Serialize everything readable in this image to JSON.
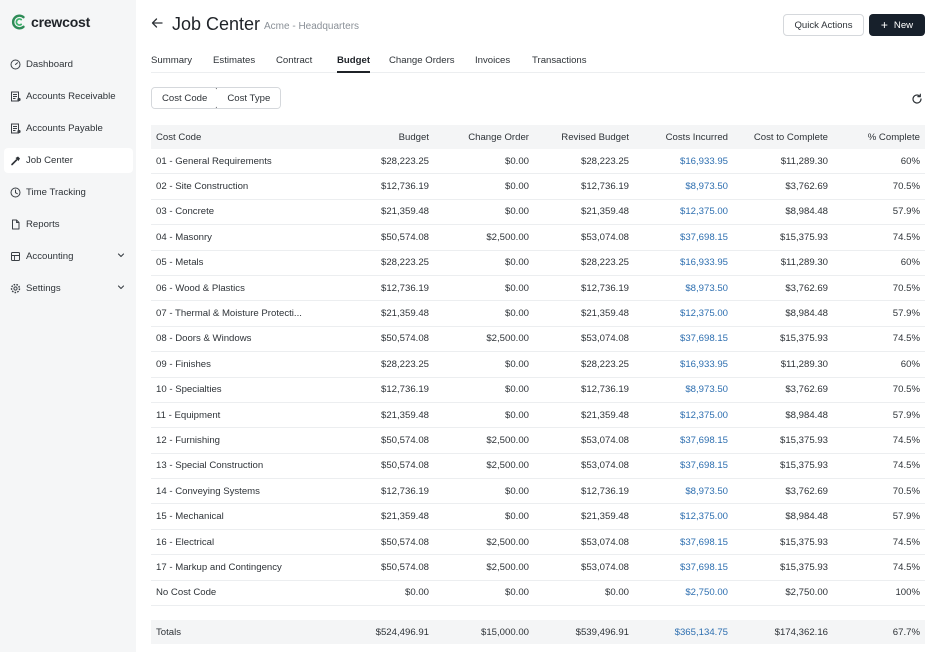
{
  "app": {
    "logo_text": "crewcost",
    "accent": "#2e8b57"
  },
  "sidebar": {
    "items": [
      {
        "label": "Dashboard",
        "icon": "gauge-icon",
        "active": false
      },
      {
        "label": "Accounts Receivable",
        "icon": "receipt-icon",
        "active": false
      },
      {
        "label": "Accounts Payable",
        "icon": "invoice-icon",
        "active": false
      },
      {
        "label": "Job Center",
        "icon": "hammer-icon",
        "active": true
      },
      {
        "label": "Time Tracking",
        "icon": "clock-icon",
        "active": false
      },
      {
        "label": "Reports",
        "icon": "document-icon",
        "active": false
      },
      {
        "label": "Accounting",
        "icon": "ledger-icon",
        "active": false,
        "expandable": true
      },
      {
        "label": "Settings",
        "icon": "gear-icon",
        "active": false,
        "expandable": true
      }
    ]
  },
  "header": {
    "title": "Job Center",
    "subtitle": "Acme - Headquarters",
    "quick_actions_label": "Quick Actions",
    "new_label": "New"
  },
  "tabs": [
    "Summary",
    "Estimates",
    "Contract",
    "Budget",
    "Change Orders",
    "Invoices",
    "Transactions"
  ],
  "active_tab": "Budget",
  "view_toggle": {
    "options": [
      "Cost Code",
      "Cost Type"
    ],
    "selected": "Cost Code"
  },
  "table": {
    "columns": [
      "Cost Code",
      "Budget",
      "Change Order",
      "Revised Budget",
      "Costs Incurred",
      "Cost to Complete",
      "% Complete"
    ],
    "rows": [
      [
        "01 - General Requirements",
        "$28,223.25",
        "$0.00",
        "$28,223.25",
        "$16,933.95",
        "$11,289.30",
        "60%"
      ],
      [
        "02 - Site Construction",
        "$12,736.19",
        "$0.00",
        "$12,736.19",
        "$8,973.50",
        "$3,762.69",
        "70.5%"
      ],
      [
        "03 - Concrete",
        "$21,359.48",
        "$0.00",
        "$21,359.48",
        "$12,375.00",
        "$8,984.48",
        "57.9%"
      ],
      [
        "04 - Masonry",
        "$50,574.08",
        "$2,500.00",
        "$53,074.08",
        "$37,698.15",
        "$15,375.93",
        "74.5%"
      ],
      [
        "05 - Metals",
        "$28,223.25",
        "$0.00",
        "$28,223.25",
        "$16,933.95",
        "$11,289.30",
        "60%"
      ],
      [
        "06 - Wood & Plastics",
        "$12,736.19",
        "$0.00",
        "$12,736.19",
        "$8,973.50",
        "$3,762.69",
        "70.5%"
      ],
      [
        "07 - Thermal & Moisture Protecti...",
        "$21,359.48",
        "$0.00",
        "$21,359.48",
        "$12,375.00",
        "$8,984.48",
        "57.9%"
      ],
      [
        "08 - Doors & Windows",
        "$50,574.08",
        "$2,500.00",
        "$53,074.08",
        "$37,698.15",
        "$15,375.93",
        "74.5%"
      ],
      [
        "09 - Finishes",
        "$28,223.25",
        "$0.00",
        "$28,223.25",
        "$16,933.95",
        "$11,289.30",
        "60%"
      ],
      [
        "10 - Specialties",
        "$12,736.19",
        "$0.00",
        "$12,736.19",
        "$8,973.50",
        "$3,762.69",
        "70.5%"
      ],
      [
        "11 - Equipment",
        "$21,359.48",
        "$0.00",
        "$21,359.48",
        "$12,375.00",
        "$8,984.48",
        "57.9%"
      ],
      [
        "12 - Furnishing",
        "$50,574.08",
        "$2,500.00",
        "$53,074.08",
        "$37,698.15",
        "$15,375.93",
        "74.5%"
      ],
      [
        "13 - Special Construction",
        "$50,574.08",
        "$2,500.00",
        "$53,074.08",
        "$37,698.15",
        "$15,375.93",
        "74.5%"
      ],
      [
        "14 - Conveying Systems",
        "$12,736.19",
        "$0.00",
        "$12,736.19",
        "$8,973.50",
        "$3,762.69",
        "70.5%"
      ],
      [
        "15 - Mechanical",
        "$21,359.48",
        "$0.00",
        "$21,359.48",
        "$12,375.00",
        "$8,984.48",
        "57.9%"
      ],
      [
        "16 - Electrical",
        "$50,574.08",
        "$2,500.00",
        "$53,074.08",
        "$37,698.15",
        "$15,375.93",
        "74.5%"
      ],
      [
        "17 - Markup and Contingency",
        "$50,574.08",
        "$2,500.00",
        "$53,074.08",
        "$37,698.15",
        "$15,375.93",
        "74.5%"
      ],
      [
        "No Cost Code",
        "$0.00",
        "$0.00",
        "$0.00",
        "$2,750.00",
        "$2,750.00",
        "100%"
      ]
    ],
    "totals": [
      "Totals",
      "$524,496.91",
      "$15,000.00",
      "$539,496.91",
      "$365,134.75",
      "$174,362.16",
      "67.7%"
    ],
    "link_color": "#2e6fb0"
  }
}
